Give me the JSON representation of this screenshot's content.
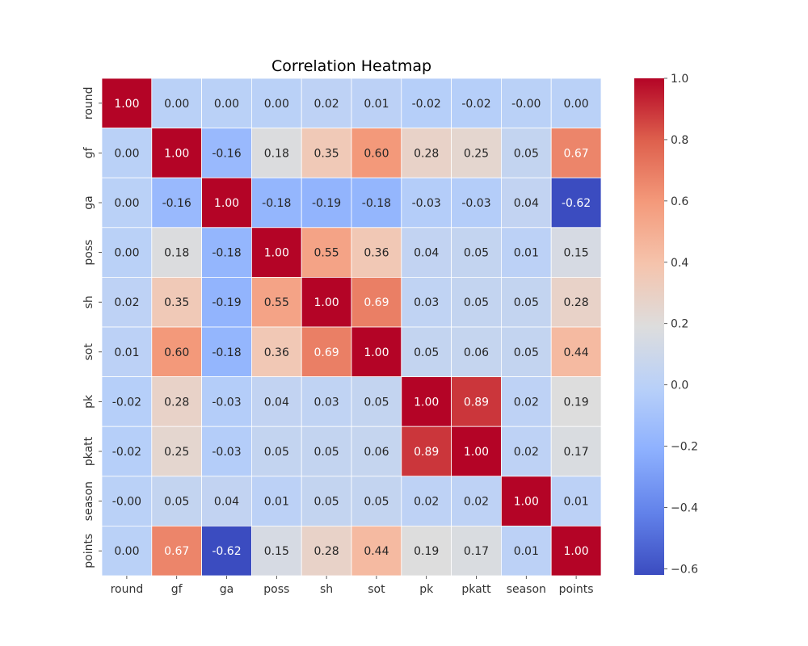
{
  "chart_data": {
    "type": "heatmap",
    "title": "Correlation Heatmap",
    "xlabel": "",
    "ylabel": "",
    "x_categories": [
      "round",
      "gf",
      "ga",
      "poss",
      "sh",
      "sot",
      "pk",
      "pkatt",
      "season",
      "points"
    ],
    "y_categories": [
      "round",
      "gf",
      "ga",
      "poss",
      "sh",
      "sot",
      "pk",
      "pkatt",
      "season",
      "points"
    ],
    "values": [
      [
        1.0,
        0.0,
        0.0,
        0.0,
        0.02,
        0.01,
        -0.02,
        -0.02,
        -0.0,
        0.0
      ],
      [
        0.0,
        1.0,
        -0.16,
        0.18,
        0.35,
        0.6,
        0.28,
        0.25,
        0.05,
        0.67
      ],
      [
        0.0,
        -0.16,
        1.0,
        -0.18,
        -0.19,
        -0.18,
        -0.03,
        -0.03,
        0.04,
        -0.62
      ],
      [
        0.0,
        0.18,
        -0.18,
        1.0,
        0.55,
        0.36,
        0.04,
        0.05,
        0.01,
        0.15
      ],
      [
        0.02,
        0.35,
        -0.19,
        0.55,
        1.0,
        0.69,
        0.03,
        0.05,
        0.05,
        0.28
      ],
      [
        0.01,
        0.6,
        -0.18,
        0.36,
        0.69,
        1.0,
        0.05,
        0.06,
        0.05,
        0.44
      ],
      [
        -0.02,
        0.28,
        -0.03,
        0.04,
        0.03,
        0.05,
        1.0,
        0.89,
        0.02,
        0.19
      ],
      [
        -0.02,
        0.25,
        -0.03,
        0.05,
        0.05,
        0.06,
        0.89,
        1.0,
        0.02,
        0.17
      ],
      [
        -0.0,
        0.05,
        0.04,
        0.01,
        0.05,
        0.05,
        0.02,
        0.02,
        1.0,
        0.01
      ],
      [
        0.0,
        0.67,
        -0.62,
        0.15,
        0.28,
        0.44,
        0.19,
        0.17,
        0.01,
        1.0
      ]
    ],
    "labels": [
      [
        "1.00",
        "0.00",
        "0.00",
        "0.00",
        "0.02",
        "0.01",
        "-0.02",
        "-0.02",
        "-0.00",
        "0.00"
      ],
      [
        "0.00",
        "1.00",
        "-0.16",
        "0.18",
        "0.35",
        "0.60",
        "0.28",
        "0.25",
        "0.05",
        "0.67"
      ],
      [
        "0.00",
        "-0.16",
        "1.00",
        "-0.18",
        "-0.19",
        "-0.18",
        "-0.03",
        "-0.03",
        "0.04",
        "-0.62"
      ],
      [
        "0.00",
        "0.18",
        "-0.18",
        "1.00",
        "0.55",
        "0.36",
        "0.04",
        "0.05",
        "0.01",
        "0.15"
      ],
      [
        "0.02",
        "0.35",
        "-0.19",
        "0.55",
        "1.00",
        "0.69",
        "0.03",
        "0.05",
        "0.05",
        "0.28"
      ],
      [
        "0.01",
        "0.60",
        "-0.18",
        "0.36",
        "0.69",
        "1.00",
        "0.05",
        "0.06",
        "0.05",
        "0.44"
      ],
      [
        "-0.02",
        "0.28",
        "-0.03",
        "0.04",
        "0.03",
        "0.05",
        "1.00",
        "0.89",
        "0.02",
        "0.19"
      ],
      [
        "-0.02",
        "0.25",
        "-0.03",
        "0.05",
        "0.05",
        "0.06",
        "0.89",
        "1.00",
        "0.02",
        "0.17"
      ],
      [
        "-0.00",
        "0.05",
        "0.04",
        "0.01",
        "0.05",
        "0.05",
        "0.02",
        "0.02",
        "1.00",
        "0.01"
      ],
      [
        "0.00",
        "0.67",
        "-0.62",
        "0.15",
        "0.28",
        "0.44",
        "0.19",
        "0.17",
        "0.01",
        "1.00"
      ]
    ],
    "colormap": "coolwarm",
    "vmin": -0.62,
    "vmax": 1.0,
    "colorbar_ticks": [
      -0.6,
      -0.4,
      -0.2,
      0.0,
      0.2,
      0.4,
      0.6,
      0.8,
      1.0
    ],
    "colorbar_tick_labels": [
      "−0.6",
      "−0.4",
      "−0.2",
      "0.0",
      "0.2",
      "0.4",
      "0.6",
      "0.8",
      "1.0"
    ],
    "grid": false,
    "cell_border_color": "#ffffff",
    "legend": "colorbar-right"
  }
}
